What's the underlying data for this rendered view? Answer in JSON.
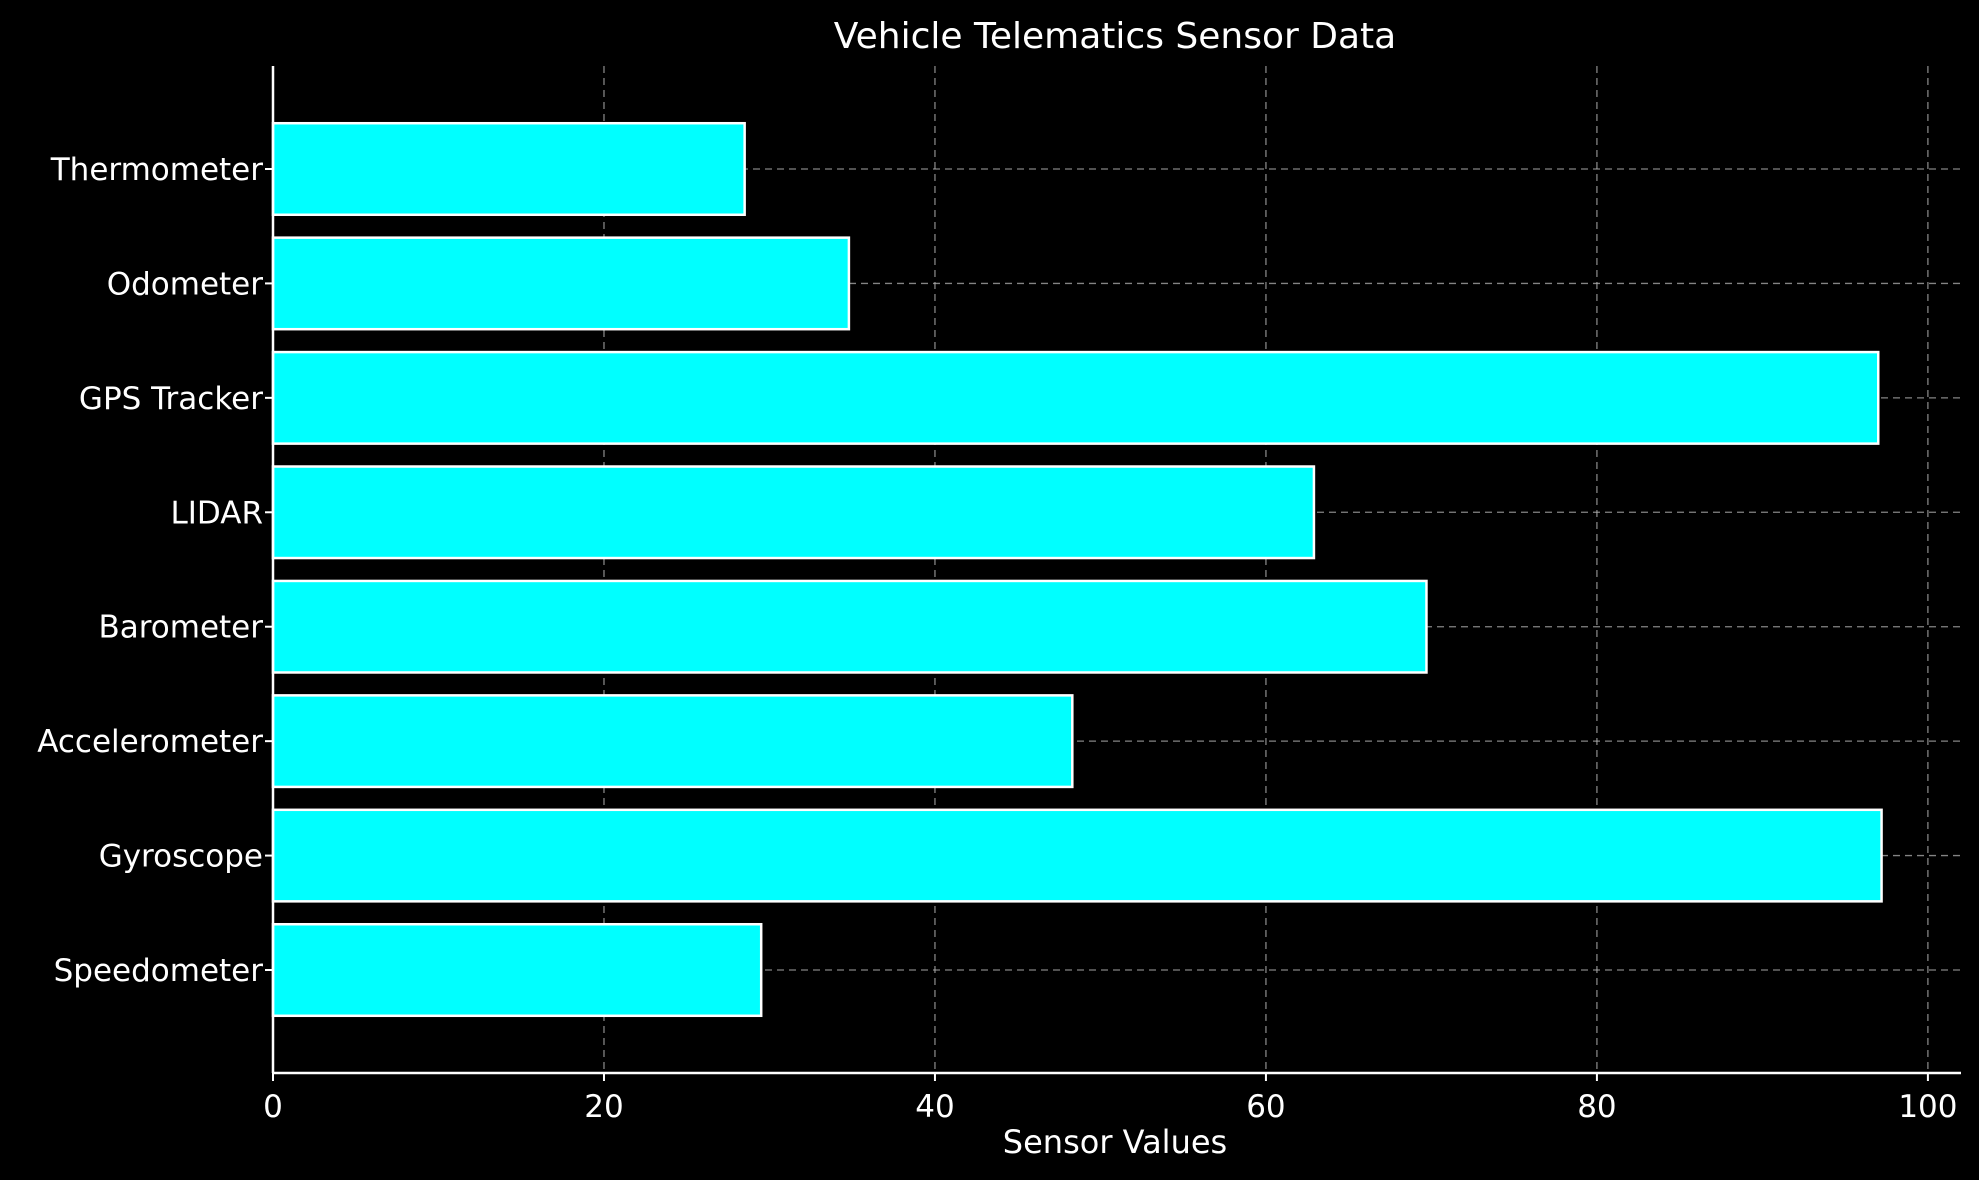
{
  "chart_data": {
    "type": "bar",
    "orientation": "horizontal",
    "title": "Vehicle Telematics Sensor Data",
    "xlabel": "Sensor Values",
    "ylabel": "",
    "categories": [
      "Speedometer",
      "Gyroscope",
      "Accelerometer",
      "Barometer",
      "LIDAR",
      "GPS Tracker",
      "Odometer",
      "Thermometer"
    ],
    "values": [
      29.5,
      97.2,
      48.3,
      69.7,
      62.9,
      97.0,
      34.8,
      28.5
    ],
    "xlim": [
      0,
      102
    ],
    "xticks": [
      0,
      20,
      40,
      60,
      80,
      100
    ],
    "grid": true,
    "colors": {
      "background": "#000000",
      "bar_fill": "#00ffff",
      "bar_edge": "#ffffff",
      "text": "#ffffff",
      "grid": "#b0b0b0"
    }
  }
}
